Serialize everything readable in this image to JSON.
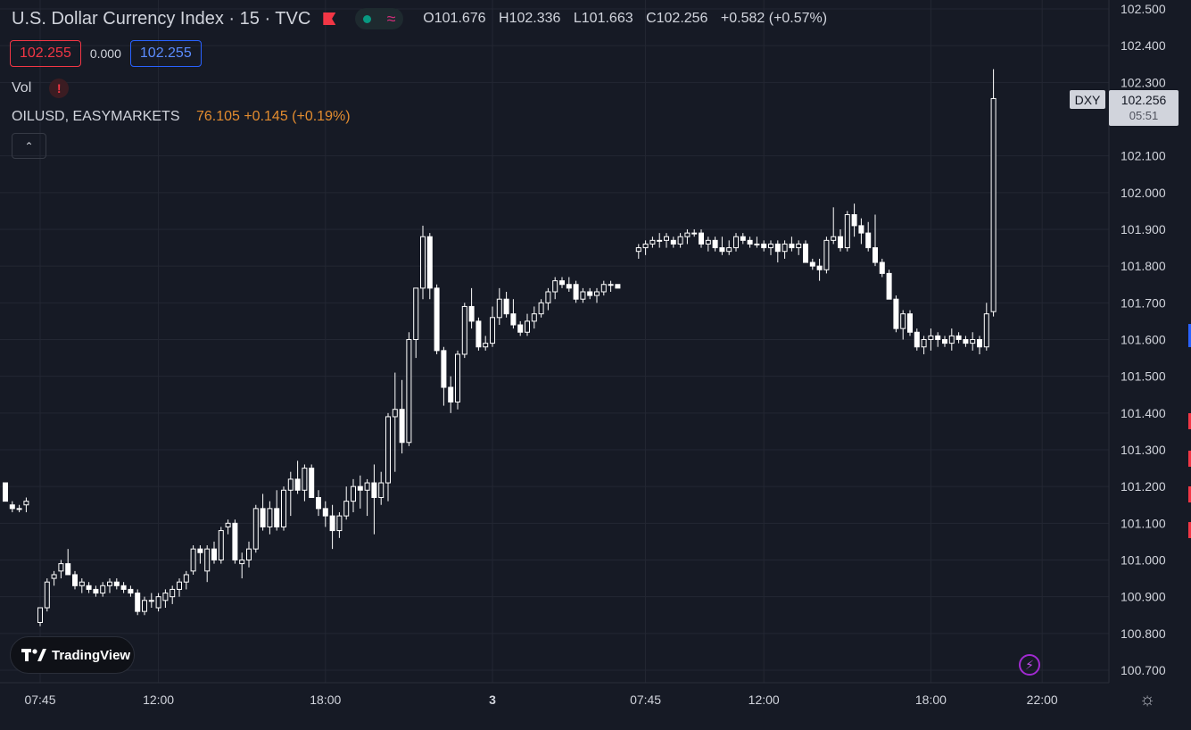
{
  "header": {
    "title": "U.S. Dollar Currency Index · 15 · TVC",
    "ohlc": {
      "open": "O101.676",
      "high": "H102.336",
      "low": "L101.663",
      "close": "C102.256",
      "change": "+0.582 (+0.57%)"
    }
  },
  "quote": {
    "bid": "102.255",
    "spread": "0.000",
    "ask": "102.255"
  },
  "volume": {
    "label": "Vol",
    "warning_icon": "!"
  },
  "compare": {
    "symbol": "OILUSD, EASYMARKETS",
    "value": "76.105 +0.145 (+0.19%)"
  },
  "collapse_icon": "chevron-up-icon",
  "logo": {
    "text": "TradingView"
  },
  "last_price": {
    "symbol": "DXY",
    "price": "102.256",
    "countdown": "05:51"
  },
  "colors": {
    "background": "#161a25",
    "grid": "#232733",
    "candle": "#ffffff",
    "text": "#d1d4dc",
    "bid": "#f23645",
    "ask": "#2962ff",
    "compare": "#e38c2f"
  },
  "chart_data": {
    "type": "candlestick",
    "symbol": "DXY",
    "interval": "15",
    "ylim": [
      100.65,
      102.52
    ],
    "y_ticks": [
      "102.500",
      "102.400",
      "102.300",
      "102.100",
      "102.000",
      "101.900",
      "101.800",
      "101.700",
      "101.600",
      "101.500",
      "101.400",
      "101.300",
      "101.200",
      "101.100",
      "101.000",
      "100.900",
      "100.800",
      "100.700"
    ],
    "x_ticks": [
      {
        "label": "07:45",
        "bar": 5
      },
      {
        "label": "12:00",
        "bar": 22
      },
      {
        "label": "18:00",
        "bar": 46
      },
      {
        "label": "3",
        "bar": 70
      },
      {
        "label": "07:45",
        "bar": 92
      },
      {
        "label": "12:00",
        "bar": 109
      },
      {
        "label": "18:00",
        "bar": 133
      },
      {
        "label": "22:00",
        "bar": 149
      }
    ],
    "candles": [
      [
        101.21,
        101.21,
        101.16,
        101.16
      ],
      [
        101.15,
        101.16,
        101.13,
        101.14
      ],
      [
        101.14,
        101.15,
        101.13,
        101.14
      ],
      [
        101.15,
        101.17,
        101.13,
        101.16
      ],
      null,
      [
        100.83,
        100.87,
        100.82,
        100.87
      ],
      [
        100.87,
        100.95,
        100.86,
        100.94
      ],
      [
        100.95,
        100.97,
        100.93,
        100.96
      ],
      [
        100.97,
        101.0,
        100.95,
        100.99
      ],
      [
        100.99,
        101.03,
        100.96,
        100.96
      ],
      [
        100.96,
        100.97,
        100.92,
        100.93
      ],
      [
        100.93,
        100.95,
        100.91,
        100.94
      ],
      [
        100.93,
        100.94,
        100.91,
        100.92
      ],
      [
        100.92,
        100.93,
        100.9,
        100.91
      ],
      [
        100.91,
        100.94,
        100.9,
        100.93
      ],
      [
        100.93,
        100.95,
        100.91,
        100.94
      ],
      [
        100.94,
        100.95,
        100.92,
        100.93
      ],
      [
        100.93,
        100.94,
        100.91,
        100.92
      ],
      [
        100.92,
        100.93,
        100.9,
        100.91
      ],
      [
        100.91,
        100.92,
        100.85,
        100.86
      ],
      [
        100.86,
        100.9,
        100.85,
        100.89
      ],
      [
        100.89,
        100.91,
        100.87,
        100.89
      ],
      [
        100.87,
        100.91,
        100.86,
        100.9
      ],
      [
        100.89,
        100.92,
        100.87,
        100.91
      ],
      [
        100.9,
        100.93,
        100.88,
        100.92
      ],
      [
        100.92,
        100.95,
        100.9,
        100.94
      ],
      [
        100.94,
        100.97,
        100.92,
        100.96
      ],
      [
        100.97,
        101.04,
        100.96,
        101.03
      ],
      [
        101.03,
        101.04,
        100.99,
        101.02
      ],
      [
        100.97,
        101.04,
        100.94,
        101.03
      ],
      [
        101.03,
        101.05,
        100.99,
        101.0
      ],
      [
        101.0,
        101.09,
        100.99,
        101.08
      ],
      [
        101.09,
        101.11,
        101.07,
        101.1
      ],
      [
        101.1,
        101.11,
        100.99,
        101.0
      ],
      [
        100.99,
        101.02,
        100.95,
        101.0
      ],
      [
        101.0,
        101.05,
        100.98,
        101.03
      ],
      [
        101.03,
        101.15,
        101.02,
        101.14
      ],
      [
        101.14,
        101.18,
        101.08,
        101.09
      ],
      [
        101.09,
        101.16,
        101.07,
        101.14
      ],
      [
        101.14,
        101.19,
        101.08,
        101.09
      ],
      [
        101.09,
        101.2,
        101.08,
        101.19
      ],
      [
        101.19,
        101.24,
        101.12,
        101.22
      ],
      [
        101.22,
        101.27,
        101.18,
        101.19
      ],
      [
        101.19,
        101.26,
        101.16,
        101.25
      ],
      [
        101.25,
        101.26,
        101.17,
        101.17
      ],
      [
        101.17,
        101.19,
        101.12,
        101.14
      ],
      [
        101.14,
        101.16,
        101.09,
        101.12
      ],
      [
        101.12,
        101.15,
        101.03,
        101.08
      ],
      [
        101.08,
        101.13,
        101.06,
        101.12
      ],
      [
        101.12,
        101.2,
        101.11,
        101.16
      ],
      [
        101.16,
        101.22,
        101.13,
        101.2
      ],
      [
        101.2,
        101.23,
        101.14,
        101.19
      ],
      [
        101.19,
        101.22,
        101.12,
        101.21
      ],
      [
        101.21,
        101.26,
        101.07,
        101.17
      ],
      [
        101.17,
        101.24,
        101.15,
        101.21
      ],
      [
        101.21,
        101.4,
        101.16,
        101.39
      ],
      [
        101.39,
        101.51,
        101.24,
        101.41
      ],
      [
        101.41,
        101.49,
        101.29,
        101.32
      ],
      [
        101.32,
        101.62,
        101.31,
        101.6
      ],
      [
        101.6,
        101.74,
        101.55,
        101.74
      ],
      [
        101.74,
        101.91,
        101.71,
        101.88
      ],
      [
        101.88,
        101.89,
        101.71,
        101.74
      ],
      [
        101.74,
        101.75,
        101.56,
        101.57
      ],
      [
        101.57,
        101.58,
        101.42,
        101.47
      ],
      [
        101.47,
        101.5,
        101.4,
        101.43
      ],
      [
        101.43,
        101.57,
        101.41,
        101.56
      ],
      [
        101.56,
        101.7,
        101.55,
        101.69
      ],
      [
        101.69,
        101.74,
        101.63,
        101.65
      ],
      [
        101.65,
        101.66,
        101.57,
        101.58
      ],
      [
        101.58,
        101.61,
        101.57,
        101.59
      ],
      [
        101.59,
        101.69,
        101.58,
        101.66
      ],
      [
        101.66,
        101.74,
        101.64,
        101.71
      ],
      [
        101.71,
        101.73,
        101.66,
        101.67
      ],
      [
        101.67,
        101.71,
        101.63,
        101.64
      ],
      [
        101.64,
        101.65,
        101.61,
        101.62
      ],
      [
        101.62,
        101.67,
        101.61,
        101.65
      ],
      [
        101.65,
        101.69,
        101.63,
        101.67
      ],
      [
        101.67,
        101.71,
        101.66,
        101.7
      ],
      [
        101.7,
        101.74,
        101.68,
        101.73
      ],
      [
        101.73,
        101.77,
        101.71,
        101.76
      ],
      [
        101.76,
        101.77,
        101.74,
        101.75
      ],
      [
        101.75,
        101.77,
        101.73,
        101.74
      ],
      [
        101.75,
        101.76,
        101.7,
        101.71
      ],
      [
        101.71,
        101.74,
        101.7,
        101.73
      ],
      [
        101.73,
        101.74,
        101.71,
        101.72
      ],
      [
        101.72,
        101.74,
        101.7,
        101.73
      ],
      [
        101.73,
        101.76,
        101.72,
        101.75
      ],
      [
        101.75,
        101.76,
        101.73,
        101.75
      ],
      [
        101.75,
        101.75,
        101.74,
        101.74
      ],
      null,
      null,
      [
        101.84,
        101.86,
        101.82,
        101.85
      ],
      [
        101.85,
        101.87,
        101.83,
        101.86
      ],
      [
        101.86,
        101.88,
        101.85,
        101.87
      ],
      [
        101.87,
        101.89,
        101.85,
        101.87
      ],
      [
        101.87,
        101.89,
        101.85,
        101.88
      ],
      [
        101.87,
        101.88,
        101.85,
        101.86
      ],
      [
        101.86,
        101.89,
        101.85,
        101.88
      ],
      [
        101.88,
        101.9,
        101.86,
        101.89
      ],
      [
        101.89,
        101.9,
        101.88,
        101.89
      ],
      [
        101.89,
        101.9,
        101.85,
        101.86
      ],
      [
        101.86,
        101.88,
        101.84,
        101.87
      ],
      [
        101.87,
        101.88,
        101.84,
        101.85
      ],
      [
        101.85,
        101.88,
        101.83,
        101.84
      ],
      [
        101.84,
        101.87,
        101.83,
        101.85
      ],
      [
        101.85,
        101.89,
        101.84,
        101.88
      ],
      [
        101.88,
        101.89,
        101.86,
        101.87
      ],
      [
        101.87,
        101.88,
        101.85,
        101.86
      ],
      [
        101.86,
        101.88,
        101.85,
        101.86
      ],
      [
        101.86,
        101.87,
        101.84,
        101.85
      ],
      [
        101.85,
        101.87,
        101.83,
        101.86
      ],
      [
        101.86,
        101.87,
        101.81,
        101.84
      ],
      [
        101.84,
        101.87,
        101.82,
        101.86
      ],
      [
        101.86,
        101.88,
        101.84,
        101.85
      ],
      [
        101.85,
        101.87,
        101.83,
        101.86
      ],
      [
        101.86,
        101.87,
        101.81,
        101.81
      ],
      [
        101.81,
        101.82,
        101.79,
        101.8
      ],
      [
        101.8,
        101.82,
        101.76,
        101.79
      ],
      [
        101.79,
        101.88,
        101.78,
        101.87
      ],
      [
        101.87,
        101.96,
        101.86,
        101.88
      ],
      [
        101.88,
        101.9,
        101.84,
        101.85
      ],
      [
        101.85,
        101.95,
        101.84,
        101.94
      ],
      [
        101.94,
        101.97,
        101.88,
        101.91
      ],
      [
        101.91,
        101.93,
        101.86,
        101.89
      ],
      [
        101.89,
        101.92,
        101.84,
        101.85
      ],
      [
        101.85,
        101.94,
        101.8,
        101.81
      ],
      [
        101.81,
        101.82,
        101.77,
        101.78
      ],
      [
        101.78,
        101.79,
        101.71,
        101.71
      ],
      [
        101.71,
        101.72,
        101.62,
        101.63
      ],
      [
        101.63,
        101.68,
        101.6,
        101.67
      ],
      [
        101.67,
        101.68,
        101.61,
        101.62
      ],
      [
        101.62,
        101.63,
        101.57,
        101.58
      ],
      [
        101.58,
        101.61,
        101.56,
        101.6
      ],
      [
        101.6,
        101.63,
        101.57,
        101.61
      ],
      [
        101.61,
        101.62,
        101.58,
        101.6
      ],
      [
        101.6,
        101.61,
        101.58,
        101.59
      ],
      [
        101.59,
        101.63,
        101.57,
        101.61
      ],
      [
        101.61,
        101.62,
        101.59,
        101.6
      ],
      [
        101.6,
        101.61,
        101.58,
        101.59
      ],
      [
        101.59,
        101.62,
        101.57,
        101.6
      ],
      [
        101.6,
        101.61,
        101.56,
        101.58
      ],
      [
        101.58,
        101.7,
        101.57,
        101.67
      ],
      [
        101.676,
        102.336,
        101.663,
        102.256
      ]
    ]
  }
}
